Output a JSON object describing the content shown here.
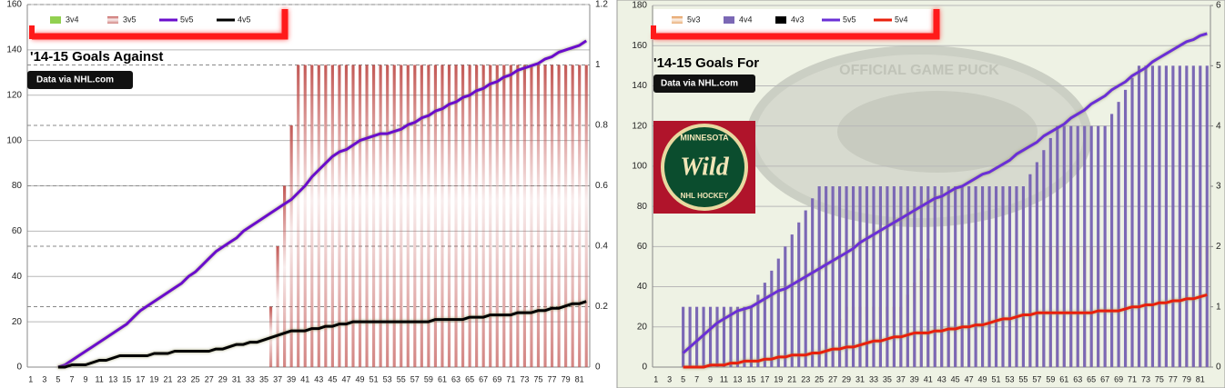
{
  "chart_data": [
    {
      "type": "combo",
      "title": "'14-15 Goals Against",
      "source": "Data via  NHL.com",
      "categories": [
        1,
        null,
        3,
        null,
        5,
        null,
        7,
        null,
        9,
        null,
        11,
        null,
        13,
        null,
        15,
        null,
        17,
        null,
        19,
        null,
        21,
        null,
        23,
        null,
        25,
        null,
        27,
        null,
        29,
        null,
        31,
        null,
        33,
        null,
        35,
        null,
        37,
        null,
        39,
        null,
        41,
        null,
        43,
        null,
        45,
        null,
        47,
        null,
        49,
        null,
        51,
        null,
        53,
        null,
        55,
        null,
        57,
        null,
        59,
        null,
        61,
        null,
        63,
        null,
        65,
        null,
        67,
        null,
        69,
        null,
        71,
        null,
        73,
        null,
        75,
        null,
        77,
        null,
        79,
        null,
        81,
        null
      ],
      "ylim": [
        0,
        160
      ],
      "yticks": [
        0,
        20,
        40,
        60,
        80,
        100,
        120,
        140,
        160
      ],
      "y2lim": [
        0,
        1.2
      ],
      "y2ticks": [
        0,
        0.2,
        0.4,
        0.6,
        0.8,
        1,
        1.2
      ],
      "grid": true,
      "y2grid": true,
      "legend": "top-left",
      "series": [
        {
          "name": "3v4",
          "type": "bar",
          "axis": "y2",
          "color": "#92d050",
          "fill": "solid",
          "values": [
            0,
            0,
            0,
            0,
            0,
            0,
            0,
            0,
            0,
            0,
            0,
            0,
            0,
            0,
            0,
            0,
            0,
            0,
            0,
            0,
            0,
            0,
            0,
            0,
            0,
            0,
            0,
            0,
            0,
            0,
            0,
            0,
            0,
            0,
            0,
            0,
            0,
            0,
            0,
            0,
            0,
            0,
            0,
            0,
            0,
            0,
            0,
            0,
            0,
            0,
            0,
            0,
            0,
            0,
            0,
            0,
            0,
            0,
            0,
            0,
            0,
            0,
            0,
            0,
            0,
            0,
            0,
            0,
            0,
            0,
            0,
            0,
            0,
            0,
            0,
            0,
            0,
            0,
            0,
            0,
            0,
            0
          ]
        },
        {
          "name": "3v5",
          "type": "bar",
          "axis": "y2",
          "color": "#c0504d",
          "fill": "gradient",
          "values": [
            0,
            0,
            0,
            0,
            0,
            0,
            0,
            0,
            0,
            0,
            0,
            0,
            0,
            0,
            0,
            0,
            0,
            0,
            0,
            0,
            0,
            0,
            0,
            0,
            0,
            0,
            0,
            0,
            0,
            0,
            0,
            0,
            0,
            0,
            0,
            0.2,
            0.4,
            0.6,
            0.8,
            1,
            1,
            1,
            1,
            1,
            1,
            1,
            1,
            1,
            1,
            1,
            1,
            1,
            1,
            1,
            1,
            1,
            1,
            1,
            1,
            1,
            1,
            1,
            1,
            1,
            1,
            1,
            1,
            1,
            1,
            1,
            1,
            1,
            1,
            1,
            1,
            1,
            1,
            1,
            1,
            1,
            1,
            1
          ]
        },
        {
          "name": "5v5",
          "type": "line",
          "axis": "y",
          "color": "#6a0dcc",
          "values": [
            null,
            null,
            null,
            null,
            0,
            1,
            3,
            5,
            7,
            9,
            11,
            13,
            15,
            17,
            19,
            22,
            25,
            27,
            29,
            31,
            33,
            35,
            37,
            40,
            42,
            45,
            48,
            51,
            53,
            55,
            57,
            60,
            62,
            64,
            66,
            68,
            70,
            72,
            74,
            77,
            80,
            84,
            87,
            90,
            93,
            95,
            96,
            98,
            100,
            101,
            102,
            103,
            103,
            104,
            105,
            107,
            108,
            110,
            111,
            113,
            114,
            116,
            117,
            119,
            120,
            122,
            123,
            125,
            126,
            128,
            129,
            131,
            132,
            133,
            134,
            136,
            137,
            139,
            140,
            141,
            142,
            144
          ]
        },
        {
          "name": "4v5",
          "type": "line",
          "axis": "y",
          "color": "#000000",
          "values": [
            null,
            null,
            null,
            null,
            0,
            0,
            1,
            1,
            1,
            2,
            3,
            3,
            4,
            5,
            5,
            5,
            5,
            5,
            6,
            6,
            6,
            7,
            7,
            7,
            7,
            7,
            7,
            8,
            8,
            9,
            10,
            10,
            11,
            11,
            12,
            13,
            14,
            15,
            16,
            16,
            16,
            17,
            17,
            18,
            18,
            19,
            19,
            20,
            20,
            20,
            20,
            20,
            20,
            20,
            20,
            20,
            20,
            20,
            20,
            21,
            21,
            21,
            21,
            21,
            22,
            22,
            22,
            23,
            23,
            23,
            23,
            24,
            24,
            24,
            25,
            25,
            26,
            26,
            27,
            28,
            28,
            29
          ]
        }
      ]
    },
    {
      "type": "combo",
      "title": "'14-15 Goals For",
      "source": "Data via  NHL.com",
      "logo": {
        "top": "MINNESOTA",
        "main": "Wild",
        "bottom": "NHL HOCKEY"
      },
      "watermark": "OFFICIAL GAME PUCK",
      "categories": [
        1,
        null,
        3,
        null,
        5,
        null,
        7,
        null,
        9,
        null,
        11,
        null,
        13,
        null,
        15,
        null,
        17,
        null,
        19,
        null,
        21,
        null,
        23,
        null,
        25,
        null,
        27,
        null,
        29,
        null,
        31,
        null,
        33,
        null,
        35,
        null,
        37,
        null,
        39,
        null,
        41,
        null,
        43,
        null,
        45,
        null,
        47,
        null,
        49,
        null,
        51,
        null,
        53,
        null,
        55,
        null,
        57,
        null,
        59,
        null,
        61,
        null,
        63,
        null,
        65,
        null,
        67,
        null,
        69,
        null,
        71,
        null,
        73,
        null,
        75,
        null,
        77,
        null,
        79,
        null,
        81,
        null
      ],
      "ylim": [
        0,
        180
      ],
      "yticks": [
        0,
        20,
        40,
        60,
        80,
        100,
        120,
        140,
        160,
        180
      ],
      "y2lim": [
        0,
        6
      ],
      "y2ticks": [
        0,
        1,
        2,
        3,
        4,
        5,
        6
      ],
      "grid": true,
      "y2grid": false,
      "legend": "top-left",
      "series": [
        {
          "name": "5v3",
          "type": "bar",
          "axis": "y2",
          "color": "#e08a3c",
          "fill": "gradient",
          "values": [
            0,
            0,
            0,
            0,
            0,
            0,
            0,
            0,
            0,
            0,
            0,
            0,
            0,
            0,
            0,
            0,
            0,
            0,
            0,
            0,
            0,
            0,
            0,
            0,
            0.2,
            0.4,
            0.6,
            0.8,
            1,
            1,
            1,
            1,
            1,
            1,
            1,
            1,
            1,
            1.2,
            1.4,
            1.6,
            1.8,
            2,
            2,
            2,
            2,
            2,
            2,
            2,
            2,
            2,
            2,
            2,
            2,
            2,
            2,
            2,
            2,
            2,
            2,
            2,
            2,
            2,
            2,
            2,
            2,
            2,
            2,
            2,
            2,
            2,
            2,
            2,
            2,
            2,
            2,
            2,
            2,
            2,
            2,
            2,
            2,
            2
          ]
        },
        {
          "name": "4v4",
          "type": "bar",
          "axis": "y2",
          "color": "#7b68b5",
          "fill": "solid",
          "values": [
            0,
            0,
            0,
            0,
            1,
            1,
            1,
            1,
            1,
            1,
            1,
            1,
            1,
            1,
            1,
            1.2,
            1.4,
            1.6,
            1.8,
            2,
            2.2,
            2.4,
            2.6,
            2.8,
            3,
            3,
            3,
            3,
            3,
            3,
            3,
            3,
            3,
            3,
            3,
            3,
            3,
            3,
            3,
            3,
            3,
            3,
            3,
            3,
            3,
            3,
            3,
            3,
            3,
            3,
            3,
            3,
            3,
            3,
            3,
            3.2,
            3.4,
            3.6,
            3.8,
            4,
            4,
            4,
            4,
            4,
            4,
            4,
            4,
            4.2,
            4.4,
            4.6,
            4.8,
            5,
            5,
            5,
            5,
            5,
            5,
            5,
            5,
            5,
            5,
            5
          ]
        },
        {
          "name": "4v3",
          "type": "bar",
          "axis": "y2",
          "color": "#000000",
          "fill": "solid",
          "values": [
            0,
            0,
            0,
            0,
            0,
            0,
            0,
            0,
            0,
            0,
            0,
            0,
            0,
            0,
            0,
            0,
            0,
            0,
            0,
            0,
            0,
            0,
            0,
            0,
            0,
            0,
            0,
            0,
            0,
            0,
            0,
            0,
            0,
            0,
            0,
            0,
            0,
            0,
            0,
            0,
            0,
            0,
            0,
            0,
            0,
            0,
            0,
            0,
            0,
            0,
            0,
            0,
            0,
            0,
            0,
            0,
            0,
            0,
            0,
            0,
            0,
            0,
            0,
            0,
            0,
            0,
            0,
            0,
            0,
            0,
            0,
            0,
            0,
            0,
            0,
            0,
            0,
            0,
            0,
            0,
            0,
            0
          ]
        },
        {
          "name": "5v5",
          "type": "line",
          "axis": "y",
          "color": "#6a2fd6",
          "values": [
            null,
            null,
            null,
            null,
            7,
            10,
            13,
            16,
            19,
            22,
            24,
            26,
            28,
            29,
            30,
            32,
            34,
            36,
            38,
            39,
            41,
            43,
            45,
            47,
            49,
            51,
            53,
            55,
            57,
            59,
            62,
            64,
            66,
            68,
            70,
            72,
            74,
            76,
            78,
            80,
            82,
            84,
            85,
            87,
            89,
            90,
            92,
            94,
            96,
            97,
            99,
            101,
            103,
            106,
            108,
            110,
            112,
            115,
            117,
            119,
            121,
            124,
            126,
            128,
            131,
            133,
            135,
            138,
            140,
            142,
            145,
            147,
            149,
            152,
            154,
            156,
            158,
            160,
            162,
            163,
            165,
            166
          ]
        },
        {
          "name": "5v4",
          "type": "line",
          "axis": "y",
          "color": "#e8200c",
          "values": [
            null,
            null,
            null,
            null,
            0,
            0,
            0,
            0,
            1,
            1,
            1,
            2,
            2,
            3,
            3,
            3,
            4,
            4,
            5,
            5,
            6,
            6,
            6,
            7,
            7,
            8,
            9,
            9,
            10,
            10,
            11,
            12,
            13,
            13,
            14,
            15,
            15,
            16,
            17,
            17,
            17,
            18,
            18,
            19,
            19,
            20,
            20,
            21,
            21,
            22,
            23,
            24,
            24,
            25,
            26,
            26,
            27,
            27,
            27,
            27,
            27,
            27,
            27,
            27,
            27,
            28,
            28,
            28,
            28,
            29,
            30,
            30,
            31,
            31,
            32,
            32,
            33,
            33,
            34,
            34,
            35,
            36
          ]
        }
      ]
    }
  ]
}
